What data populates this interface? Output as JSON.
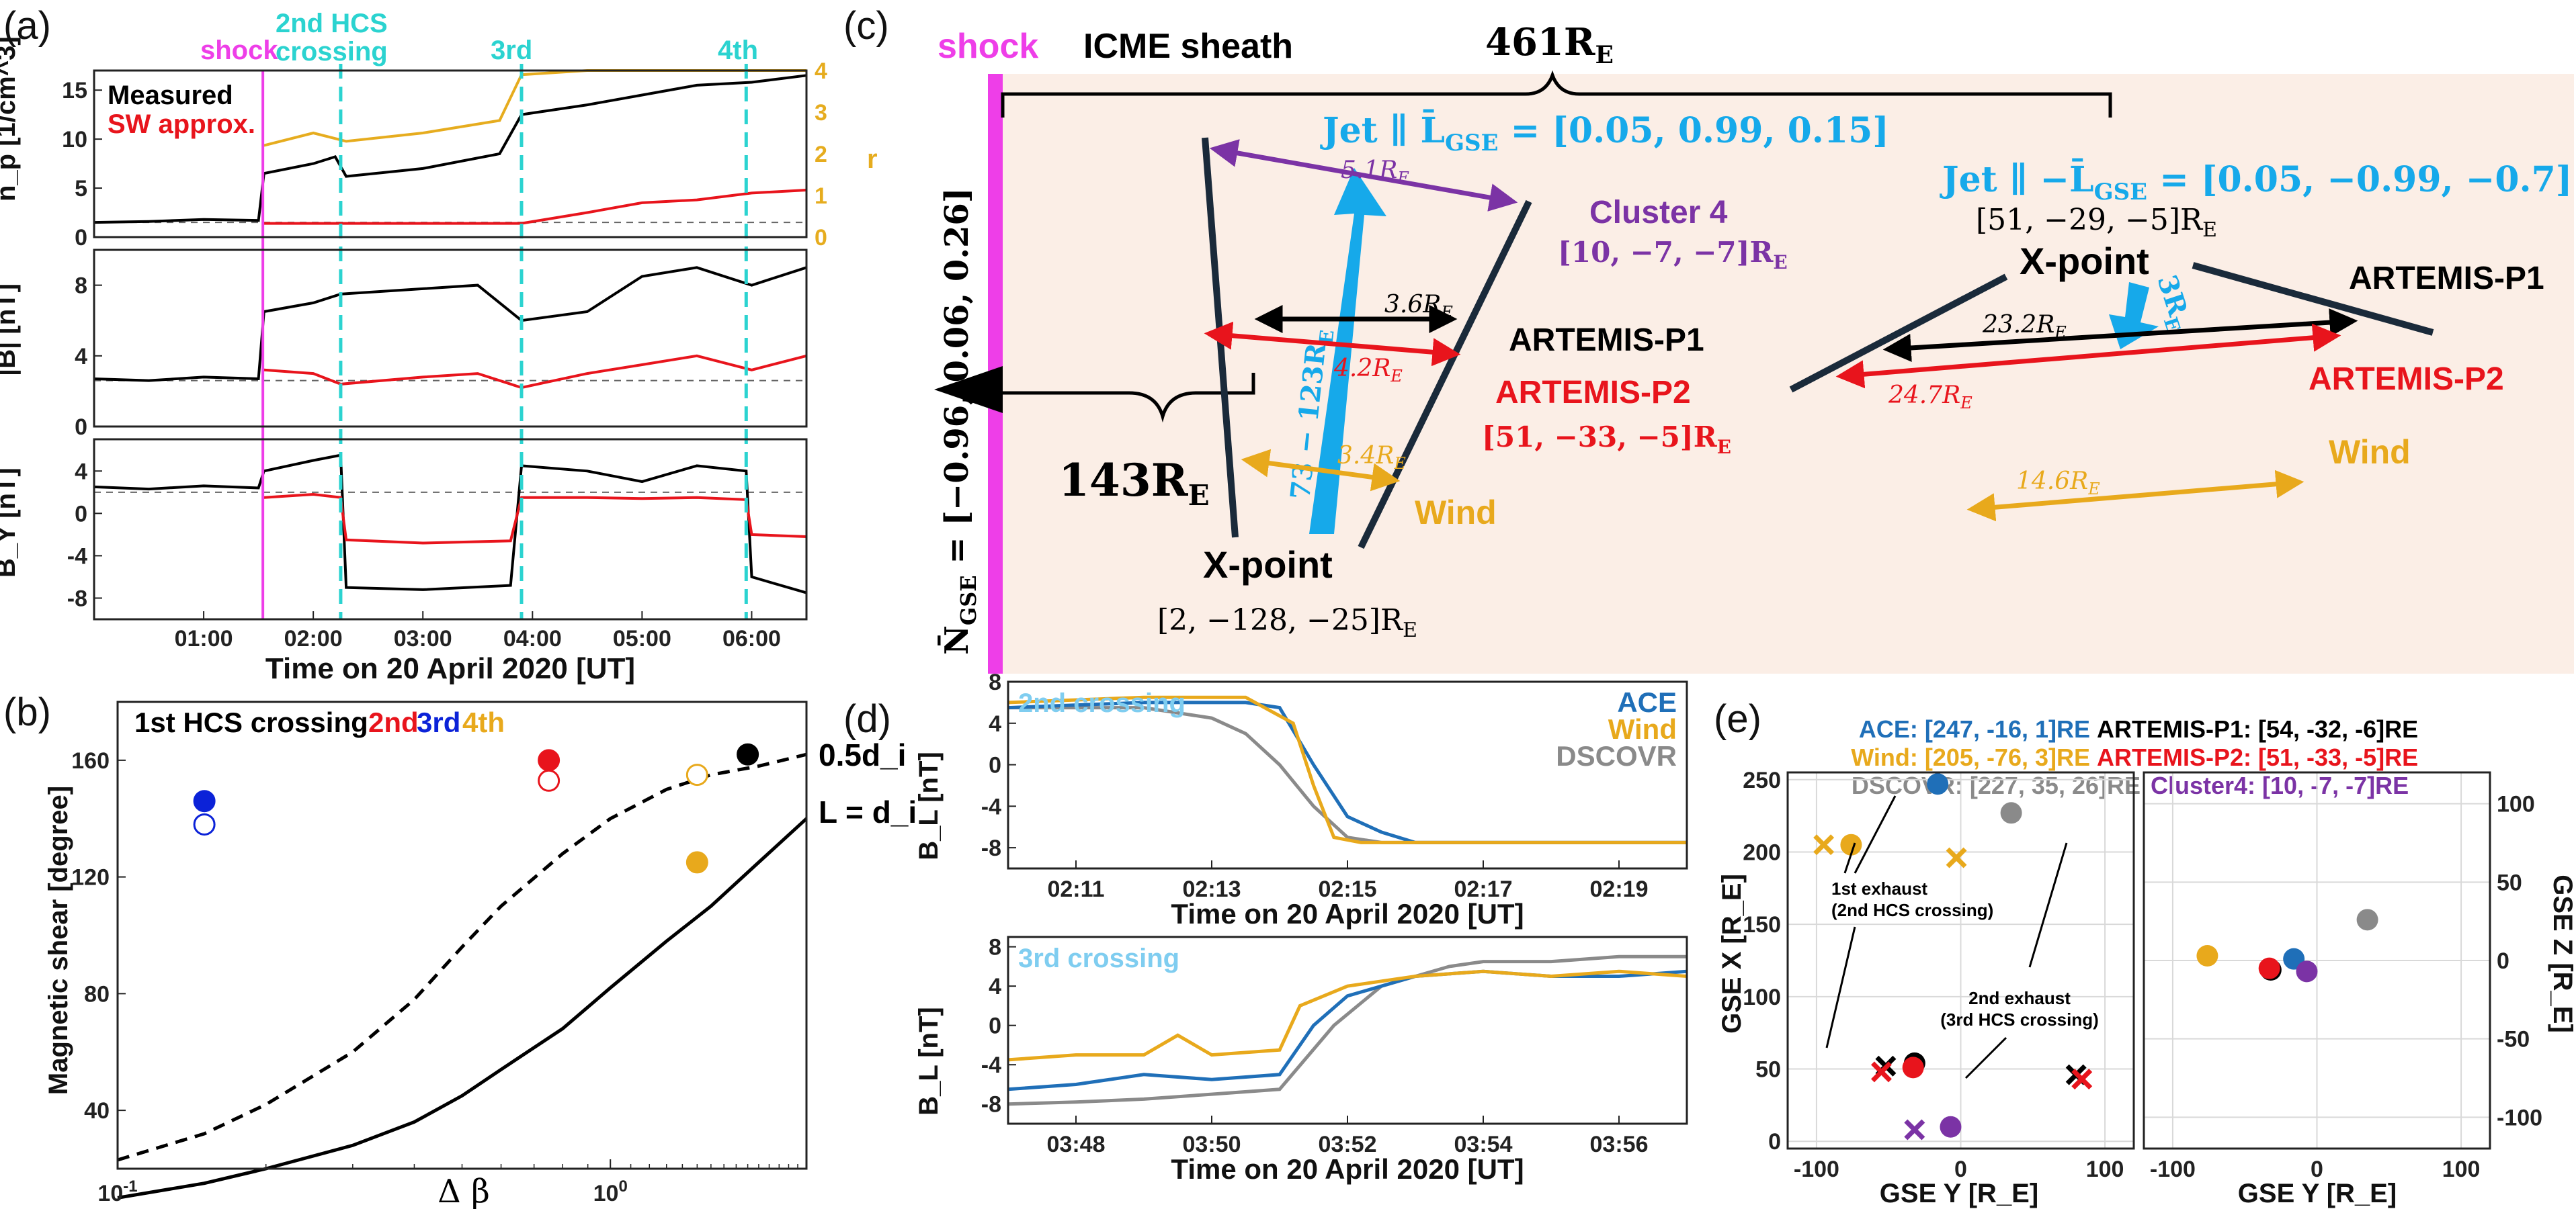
{
  "figure": {
    "panel_labels": [
      "(a)",
      "(b)",
      "(c)",
      "(d)",
      "(e)"
    ]
  },
  "colors": {
    "measured": "#000000",
    "sw_approx": "#e8141c",
    "r_ratio": "#e6ac1e",
    "shock": "#ee3ee8",
    "hcs": "#2bd3d0",
    "ace": "#1f6fb8",
    "wind": "#e8a91c",
    "dscovr": "#8a8a8a",
    "artemis_p1": "#000000",
    "artemis_p2": "#e8141c",
    "cluster4": "#7b33a5",
    "jet": "#16a9ea",
    "sheath_fill": "#fbeee6"
  },
  "chart_data": [
    {
      "id": "a",
      "type": "line",
      "xlabel": "Time on 20 April 2020 [UT]",
      "x_ticks": [
        "01:00",
        "02:00",
        "03:00",
        "04:00",
        "05:00",
        "06:00"
      ],
      "x_range_hours": [
        0.0,
        6.5
      ],
      "event_labels": {
        "shock": "shock",
        "hcs2": "2nd HCS crossing",
        "hcs3": "3rd",
        "hcs4": "4th"
      },
      "event_times_hours": {
        "shock": 1.54,
        "hcs2": 2.25,
        "hcs3": 3.9,
        "hcs4": 5.95
      },
      "legend": [
        "Measured",
        "SW approx."
      ],
      "subpanels": [
        {
          "ylabel": "n_p [1/cm^3]",
          "ylim": [
            0,
            17
          ],
          "yticks": [
            "0",
            "5",
            "10",
            "15"
          ],
          "right_ylabel": "r",
          "right_ylim": [
            0,
            4
          ],
          "right_yticks": [
            "0",
            "1",
            "2",
            "3",
            "4"
          ],
          "ref_line": 1.5,
          "measured": {
            "x": [
              0,
              0.5,
              1.0,
              1.5,
              1.55,
              2.0,
              2.2,
              2.3,
              3.0,
              3.7,
              3.9,
              4.5,
              5.0,
              5.5,
              6.0,
              6.5
            ],
            "y": [
              1.5,
              1.6,
              1.8,
              1.7,
              6.5,
              7.5,
              8.2,
              6.2,
              7.0,
              8.5,
              12.5,
              13.5,
              14.5,
              15.5,
              15.8,
              16.5
            ]
          },
          "sw_approx": {
            "x": [
              1.55,
              3.9,
              4.5,
              5.0,
              5.5,
              6.0,
              6.5
            ],
            "y": [
              1.4,
              1.4,
              2.5,
              3.5,
              3.8,
              4.5,
              4.8
            ]
          },
          "r": {
            "x": [
              1.55,
              2.0,
              2.3,
              3.0,
              3.7,
              3.9,
              4.5,
              5.5,
              6.0,
              6.5
            ],
            "y": [
              2.2,
              2.5,
              2.3,
              2.5,
              2.8,
              3.9,
              4.0,
              4.0,
              4.0,
              4.0
            ]
          }
        },
        {
          "ylabel": "|B| [nT]",
          "ylim": [
            0,
            10
          ],
          "yticks": [
            "0",
            "4",
            "8"
          ],
          "ref_line": 2.6,
          "measured": {
            "x": [
              0,
              0.5,
              1.0,
              1.5,
              1.55,
              2.0,
              2.25,
              3.0,
              3.5,
              3.9,
              4.5,
              5.0,
              5.5,
              6.0,
              6.5
            ],
            "y": [
              2.7,
              2.6,
              2.8,
              2.7,
              6.5,
              7.0,
              7.5,
              7.8,
              8.0,
              6.0,
              6.5,
              8.5,
              9.0,
              8.0,
              9.0
            ]
          },
          "sw_approx": {
            "x": [
              1.55,
              2.0,
              2.25,
              3.0,
              3.5,
              3.9,
              4.5,
              5.0,
              5.5,
              6.0,
              6.5
            ],
            "y": [
              3.2,
              3.0,
              2.4,
              2.8,
              3.0,
              2.2,
              3.0,
              3.5,
              4.0,
              3.2,
              4.0
            ]
          }
        },
        {
          "ylabel": "B_Y [nT]",
          "ylim": [
            -10,
            7
          ],
          "yticks": [
            "-8",
            "-4",
            "0",
            "4"
          ],
          "ref_line": 2.0,
          "measured": {
            "x": [
              0,
              0.5,
              1.0,
              1.5,
              1.55,
              2.0,
              2.25,
              2.3,
              3.0,
              3.8,
              3.9,
              4.5,
              5.0,
              5.5,
              5.95,
              6.0,
              6.5
            ],
            "y": [
              2.5,
              2.3,
              2.6,
              2.4,
              4.0,
              5.0,
              5.5,
              -7.0,
              -7.2,
              -6.8,
              4.5,
              4.0,
              3.0,
              4.5,
              4.0,
              -6.0,
              -7.5
            ]
          },
          "sw_approx": {
            "x": [
              1.55,
              2.0,
              2.25,
              2.3,
              3.0,
              3.8,
              3.9,
              4.5,
              5.0,
              5.5,
              5.95,
              6.0,
              6.5
            ],
            "y": [
              1.5,
              1.8,
              1.5,
              -2.5,
              -2.8,
              -2.6,
              1.5,
              1.5,
              1.4,
              1.5,
              1.3,
              -2.0,
              -2.2
            ]
          }
        }
      ]
    },
    {
      "id": "b",
      "type": "scatter",
      "xlabel": "Δ β",
      "ylabel": "Magnetic shear [degree]",
      "xscale": "log",
      "xlim": [
        0.1,
        2.5
      ],
      "ylim": [
        20,
        180
      ],
      "x_ticks": [
        "10^-1",
        "10^0"
      ],
      "y_ticks": [
        "40",
        "80",
        "120",
        "160"
      ],
      "legend_title": "1st HCS crossing",
      "legend_items": [
        "2nd",
        "3rd",
        "4th"
      ],
      "curve_labels": [
        "0.5d_i",
        "L = d_i"
      ],
      "points": [
        {
          "crossing": "1st",
          "filled": true,
          "x": 0.15,
          "y": 146
        },
        {
          "crossing": "1st",
          "filled": false,
          "x": 0.15,
          "y": 138
        },
        {
          "crossing": "2nd",
          "filled": true,
          "x": 0.75,
          "y": 160
        },
        {
          "crossing": "2nd",
          "filled": false,
          "x": 0.75,
          "y": 153
        },
        {
          "crossing": "3rd",
          "filled": true,
          "x": 1.5,
          "y": 125
        },
        {
          "crossing": "3rd",
          "filled": false,
          "x": 1.5,
          "y": 155
        },
        {
          "crossing": "4th",
          "filled": true,
          "x": 1.9,
          "y": 162
        }
      ],
      "curves": [
        {
          "name": "0.5d_i",
          "style": "dashed",
          "x": [
            0.1,
            0.15,
            0.2,
            0.3,
            0.4,
            0.5,
            0.6,
            0.8,
            1.0,
            1.3,
            1.6,
            2.0,
            2.5
          ],
          "y": [
            23,
            32,
            42,
            60,
            78,
            96,
            110,
            128,
            140,
            150,
            155,
            158,
            162
          ]
        },
        {
          "name": "L = d_i",
          "style": "solid",
          "x": [
            0.1,
            0.15,
            0.2,
            0.3,
            0.4,
            0.5,
            0.6,
            0.8,
            1.0,
            1.3,
            1.6,
            2.0,
            2.5
          ],
          "y": [
            10,
            15,
            20,
            28,
            36,
            45,
            54,
            68,
            82,
            98,
            110,
            125,
            140
          ]
        }
      ]
    },
    {
      "id": "d",
      "type": "line",
      "legend": [
        "ACE",
        "Wind",
        "DSCOVR"
      ],
      "xlabel": "Time on 20 April 2020 [UT]",
      "subpanels": [
        {
          "title": "2nd crossing",
          "ylabel": "B_L [nT]",
          "ylim": [
            -10,
            8
          ],
          "yticks": [
            "-8",
            "-4",
            "0",
            "4",
            "8"
          ],
          "x_ticks": [
            "02:11",
            "02:13",
            "02:15",
            "02:17",
            "02:19"
          ],
          "x_range_min": [
            10.0,
            20.0
          ],
          "ace": {
            "x": [
              10.0,
              12.0,
              13.5,
              14.0,
              14.5,
              15.0,
              15.5,
              16.0,
              17.0,
              20.0
            ],
            "y": [
              5.5,
              6.0,
              6.0,
              5.5,
              0.0,
              -5.0,
              -6.5,
              -7.5,
              -7.5,
              -7.5
            ]
          },
          "wind": {
            "x": [
              10.0,
              12.0,
              13.5,
              14.2,
              14.5,
              14.8,
              15.2,
              16.0,
              20.0
            ],
            "y": [
              6.0,
              6.5,
              6.5,
              4.0,
              -2.0,
              -7.0,
              -7.5,
              -7.5,
              -7.5
            ]
          },
          "dscovr": {
            "x": [
              10.0,
              12.0,
              13.0,
              13.5,
              14.0,
              14.5,
              15.0,
              15.5,
              16.0,
              20.0
            ],
            "y": [
              5.5,
              5.5,
              4.5,
              3.0,
              0.0,
              -4.0,
              -7.0,
              -7.5,
              -7.5,
              -7.5
            ]
          }
        },
        {
          "title": "3rd crossing",
          "ylabel": "B_L [nT]",
          "ylim": [
            -10,
            9
          ],
          "yticks": [
            "-8",
            "-4",
            "0",
            "4",
            "8"
          ],
          "x_ticks": [
            "03:48",
            "03:50",
            "03:52",
            "03:54",
            "03:56"
          ],
          "x_range_min": [
            47.0,
            57.0
          ],
          "ace": {
            "x": [
              47.0,
              48.0,
              49.0,
              50.0,
              51.0,
              51.5,
              52.0,
              53.0,
              54.0,
              55.0,
              56.0,
              57.0
            ],
            "y": [
              -6.5,
              -6.0,
              -5.0,
              -5.5,
              -5.0,
              0.0,
              3.0,
              5.0,
              5.5,
              5.0,
              5.0,
              5.5
            ]
          },
          "wind": {
            "x": [
              47.0,
              48.0,
              49.0,
              49.5,
              50.0,
              51.0,
              51.3,
              52.0,
              53.0,
              54.0,
              55.0,
              56.0,
              57.0
            ],
            "y": [
              -3.5,
              -3.0,
              -3.0,
              -1.0,
              -3.0,
              -2.5,
              2.0,
              4.0,
              5.0,
              5.5,
              5.0,
              5.5,
              5.0
            ]
          },
          "dscovr": {
            "x": [
              47.0,
              48.0,
              49.0,
              50.0,
              51.0,
              51.8,
              52.5,
              53.5,
              54.0,
              55.0,
              56.0,
              57.0
            ],
            "y": [
              -8.0,
              -7.8,
              -7.5,
              -7.0,
              -6.5,
              0.0,
              4.0,
              6.0,
              6.5,
              6.5,
              7.0,
              7.0
            ]
          }
        }
      ]
    },
    {
      "id": "e",
      "type": "scatter",
      "subpanels": [
        {
          "xlabel": "GSE Y [R_E]",
          "ylabel": "GSE X [R_E]",
          "xlim": [
            -120,
            120
          ],
          "ylim": [
            255,
            -5
          ],
          "x_ticks": [
            "-100",
            "0",
            "100"
          ],
          "y_ticks": [
            "0",
            "50",
            "100",
            "150",
            "200",
            "250"
          ],
          "points": [
            {
              "sc": "ACE",
              "marker": "dot",
              "x": -16,
              "y": 247
            },
            {
              "sc": "Wind",
              "marker": "dot",
              "x": -76,
              "y": 205
            },
            {
              "sc": "DSCOVR",
              "marker": "dot",
              "x": 35,
              "y": 227
            },
            {
              "sc": "ARTEMIS-P1",
              "marker": "dot",
              "x": -32,
              "y": 54
            },
            {
              "sc": "ARTEMIS-P2",
              "marker": "dot",
              "x": -33,
              "y": 51
            },
            {
              "sc": "Cluster4",
              "marker": "dot",
              "x": -7,
              "y": 10
            },
            {
              "sc": "ARTEMIS-P1",
              "marker": "cross",
              "x": -52,
              "y": 52
            },
            {
              "sc": "ARTEMIS-P2",
              "marker": "cross",
              "x": -55,
              "y": 48
            },
            {
              "sc": "Cluster4",
              "marker": "cross",
              "x": -32,
              "y": 8
            },
            {
              "sc": "Wind",
              "marker": "cross",
              "x": -95,
              "y": 205
            },
            {
              "sc": "ARTEMIS-P1",
              "marker": "cross",
              "x": 80,
              "y": 46
            },
            {
              "sc": "ARTEMIS-P2",
              "marker": "cross",
              "x": 84,
              "y": 43
            },
            {
              "sc": "Wind",
              "marker": "cross",
              "x": -3,
              "y": 196
            }
          ],
          "annotations": [
            {
              "text": "1st exhaust",
              "text2": "(2nd HCS crossing)"
            },
            {
              "text": "2nd exhaust",
              "text2": "(3rd HCS crossing)"
            }
          ]
        },
        {
          "xlabel": "GSE Y [R_E]",
          "ylabel": "GSE Z [R_E]",
          "xlim": [
            -120,
            120
          ],
          "ylim": [
            -120,
            120
          ],
          "x_ticks": [
            "-100",
            "0",
            "100"
          ],
          "y_ticks": [
            "100",
            "50",
            "0",
            "-50",
            "-100"
          ],
          "points": [
            {
              "sc": "ACE",
              "marker": "dot",
              "x": -16,
              "y": 1
            },
            {
              "sc": "Wind",
              "marker": "dot",
              "x": -76,
              "y": 3
            },
            {
              "sc": "DSCOVR",
              "marker": "dot",
              "x": 35,
              "y": 26
            },
            {
              "sc": "ARTEMIS-P1",
              "marker": "dot",
              "x": -32,
              "y": -6
            },
            {
              "sc": "ARTEMIS-P2",
              "marker": "dot",
              "x": -33,
              "y": -5
            },
            {
              "sc": "Cluster4",
              "marker": "dot",
              "x": -7,
              "y": -7
            }
          ]
        }
      ],
      "legend": [
        {
          "sc": "ACE",
          "text": "ACE: [247, -16, 1]RE"
        },
        {
          "sc": "ARTEMIS-P1",
          "text": "ARTEMIS-P1: [54, -32, -6]RE"
        },
        {
          "sc": "Wind",
          "text": "Wind: [205, -76, 3]RE"
        },
        {
          "sc": "ARTEMIS-P2",
          "text": "ARTEMIS-P2: [51, -33, -5]RE"
        },
        {
          "sc": "DSCOVR",
          "text": "DSCOVR: [227, 35, 26]RE"
        },
        {
          "sc": "Cluster4",
          "text": "Cluster4: [10, -7, -7]RE"
        }
      ]
    }
  ],
  "diagram_c": {
    "shock_label": "shock",
    "sheath_label": "ICME sheath",
    "width_label": "461R",
    "width_sub": "E",
    "distance_label": "143R",
    "distance_sub": "E",
    "normal_label": "N̄",
    "normal_sub": "GSE",
    "normal_value": " = [−0.96, 0.06, 0.26]",
    "jet1_label": "Jet ∥ L̄",
    "jet1_sub": "GSE",
    "jet1_value": " = [0.05, 0.99, 0.15]",
    "jet2_label": "Jet ∥ −L̄",
    "jet2_sub": "GSE",
    "jet2_value": " = [0.05, −0.99, −0.7]",
    "left": {
      "xpoint_label": "X-point",
      "xpoint_coord": "[2, −128, −25]R",
      "cluster_label": "Cluster 4",
      "cluster_coord": "[10, −7, −7]R",
      "p1_label": "ARTEMIS-P1",
      "p2_label": "ARTEMIS-P2",
      "p2_coord": "[51, −33, −5]R",
      "wind_label": "Wind",
      "d_cluster": "5.1R",
      "d_p1": "3.6R",
      "d_p2": "4.2R",
      "d_wind": "3.4R",
      "jet_length": "73 − 123R"
    },
    "right": {
      "xpoint_label": "X-point",
      "xpoint_coord": "[51, −29, −5]R",
      "p1_label": "ARTEMIS-P1",
      "p2_label": "ARTEMIS-P2",
      "wind_label": "Wind",
      "d_p1": "23.2R",
      "d_p2": "24.7R",
      "d_wind": "14.6R",
      "jet_length": "3R"
    },
    "subscript_E": "E"
  }
}
